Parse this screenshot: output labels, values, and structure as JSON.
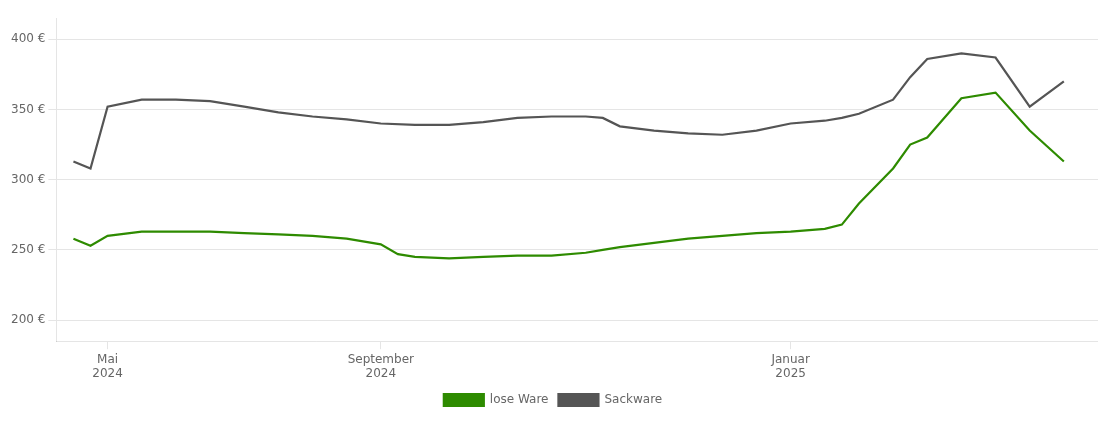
{
  "chart_data": {
    "type": "line",
    "series": [
      {
        "name": "lose Ware",
        "color": "#2e8b00",
        "x": [
          0,
          0.5,
          1,
          2,
          3,
          4,
          5,
          6,
          7,
          8,
          9,
          9.5,
          10,
          11,
          12,
          13,
          14,
          15,
          15.5,
          16,
          17,
          18,
          19,
          20,
          21,
          22,
          22.5,
          23,
          24,
          24.5,
          25,
          26,
          27,
          28,
          29
        ],
        "values": [
          258,
          253,
          260,
          263,
          263,
          263,
          262,
          261,
          260,
          258,
          254,
          247,
          245,
          244,
          245,
          246,
          246,
          248,
          250,
          252,
          255,
          258,
          260,
          262,
          263,
          265,
          268,
          283,
          308,
          325,
          330,
          358,
          362,
          335,
          313
        ]
      },
      {
        "name": "Sackware",
        "color": "#555555",
        "x": [
          0,
          0.5,
          1,
          2,
          3,
          4,
          5,
          6,
          7,
          8,
          9,
          10,
          11,
          12,
          13,
          14,
          15,
          15.5,
          16,
          17,
          18,
          19,
          20,
          21,
          22,
          22.5,
          23,
          24,
          24.5,
          25,
          26,
          27,
          28,
          29
        ],
        "values": [
          313,
          308,
          352,
          357,
          357,
          356,
          352,
          348,
          345,
          343,
          340,
          339,
          339,
          341,
          344,
          345,
          345,
          344,
          338,
          335,
          333,
          332,
          335,
          340,
          342,
          344,
          347,
          357,
          373,
          386,
          390,
          387,
          352,
          370
        ]
      }
    ],
    "xlim": [
      -0.5,
      30
    ],
    "xticks": [
      {
        "value": 1,
        "label": "Mai\n2024"
      },
      {
        "value": 9,
        "label": "September\n2024"
      },
      {
        "value": 21,
        "label": "Januar\n2025"
      }
    ],
    "ylim": [
      185,
      415
    ],
    "yticks": [
      {
        "value": 200,
        "label": "200 €"
      },
      {
        "value": 250,
        "label": "250 €"
      },
      {
        "value": 300,
        "label": "300 €"
      },
      {
        "value": 350,
        "label": "350 €"
      },
      {
        "value": 400,
        "label": "400 €"
      }
    ],
    "grid": "y",
    "legend": "bottom"
  }
}
